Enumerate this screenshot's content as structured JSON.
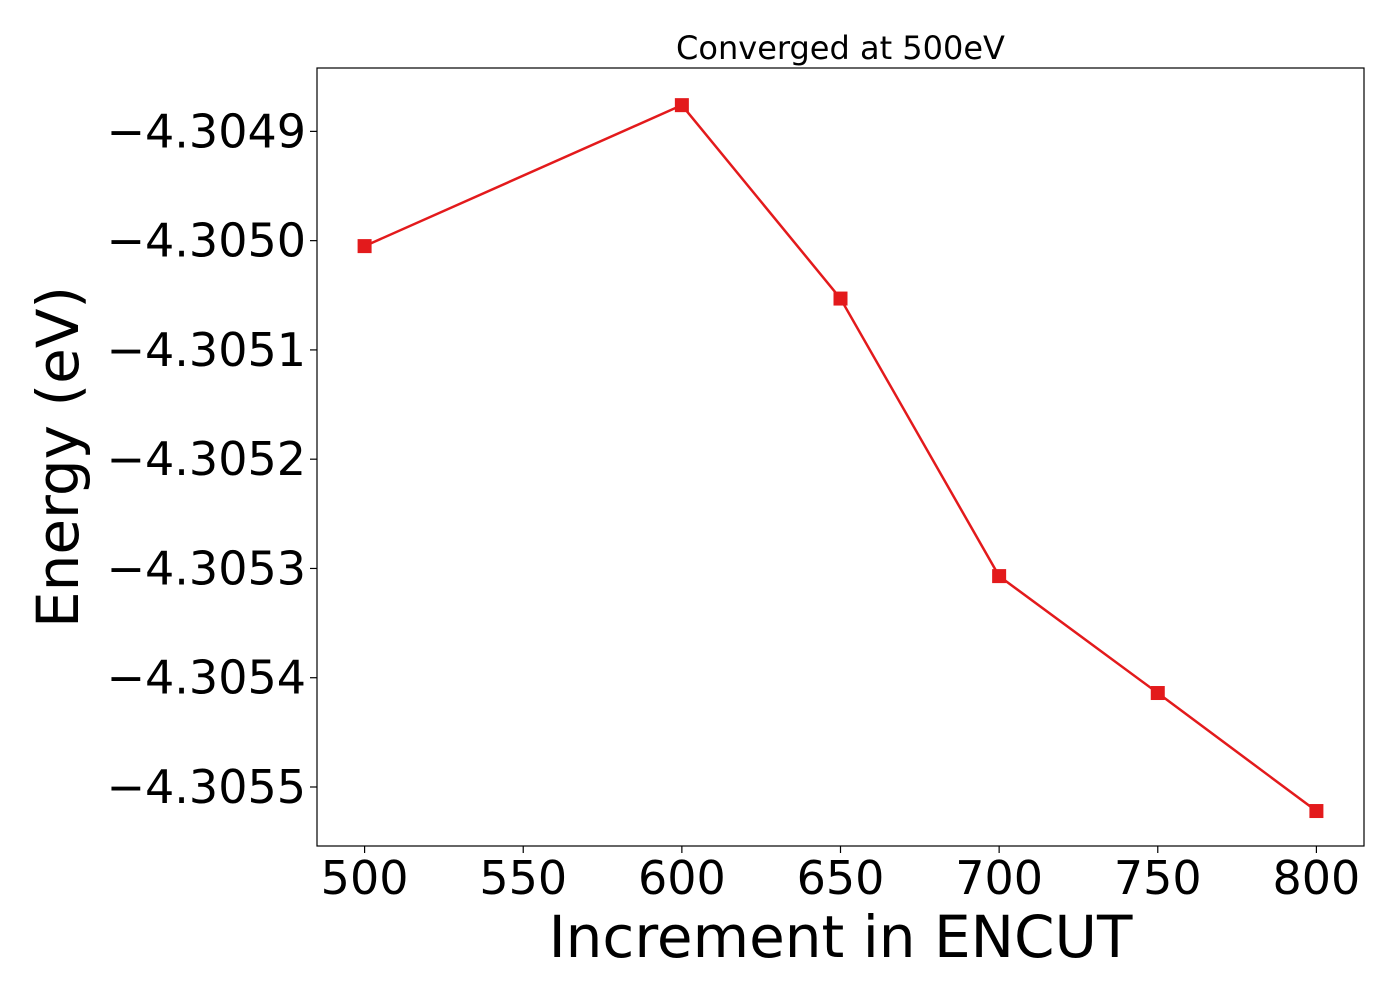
{
  "chart_data": {
    "type": "line",
    "title": "Converged at 500eV",
    "xlabel": "Increment in ENCUT",
    "ylabel": "Energy (eV)",
    "x": [
      500,
      600,
      650,
      700,
      750,
      800
    ],
    "series": [
      {
        "values": [
          -4.305005,
          -4.304876,
          -4.305053,
          -4.305307,
          -4.305414,
          -4.305522
        ],
        "color": "#e31a1c",
        "marker": "square"
      }
    ],
    "xlim": [
      485,
      815
    ],
    "ylim": [
      -4.305554,
      -4.304842
    ],
    "xticks": [
      500,
      550,
      600,
      650,
      700,
      750,
      800
    ],
    "xtick_labels": [
      "500",
      "550",
      "600",
      "650",
      "700",
      "750",
      "800"
    ],
    "yticks": [
      -4.3049,
      -4.305,
      -4.3051,
      -4.3052,
      -4.3053,
      -4.3054,
      -4.3055
    ],
    "ytick_labels": [
      "−4.3049",
      "−4.3050",
      "−4.3051",
      "−4.3052",
      "−4.3053",
      "−4.3054",
      "−4.3055"
    ],
    "grid": false,
    "legend": "none"
  }
}
